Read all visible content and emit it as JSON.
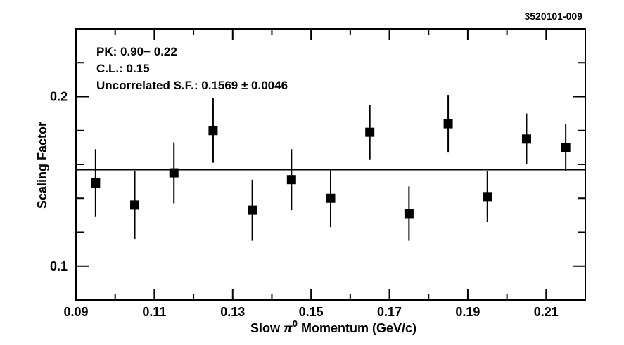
{
  "chart_data": {
    "type": "scatter",
    "reference_id": "3520101-009",
    "xlabel_prefix": "Slow ",
    "xlabel_pi": "π",
    "xlabel_sup": "0",
    "xlabel_suffix": " Momentum (GeV/c)",
    "ylabel": "Scaling Factor",
    "xlim": [
      0.09,
      0.22
    ],
    "ylim": [
      0.08,
      0.24
    ],
    "x_ticks": [
      "0.09",
      "0.11",
      "0.13",
      "0.15",
      "0.17",
      "0.19",
      "0.21"
    ],
    "x_tick_values": [
      0.09,
      0.11,
      0.13,
      0.15,
      0.17,
      0.19,
      0.21
    ],
    "y_ticks": [
      "0.1",
      "0.2"
    ],
    "y_tick_values": [
      0.1,
      0.2
    ],
    "annotations": [
      "PK: 0.90− 0.22",
      "C.L.: 0.15",
      "Uncorrelated S.F.: 0.1569 ± 0.0046"
    ],
    "fit_line": 0.1569,
    "x": [
      0.095,
      0.105,
      0.115,
      0.125,
      0.135,
      0.145,
      0.155,
      0.165,
      0.175,
      0.185,
      0.195,
      0.205,
      0.215
    ],
    "y": [
      0.149,
      0.136,
      0.155,
      0.18,
      0.133,
      0.151,
      0.14,
      0.179,
      0.131,
      0.184,
      0.141,
      0.175,
      0.17
    ],
    "y_err": [
      0.02,
      0.02,
      0.018,
      0.019,
      0.018,
      0.018,
      0.017,
      0.016,
      0.016,
      0.017,
      0.015,
      0.015,
      0.014
    ]
  }
}
